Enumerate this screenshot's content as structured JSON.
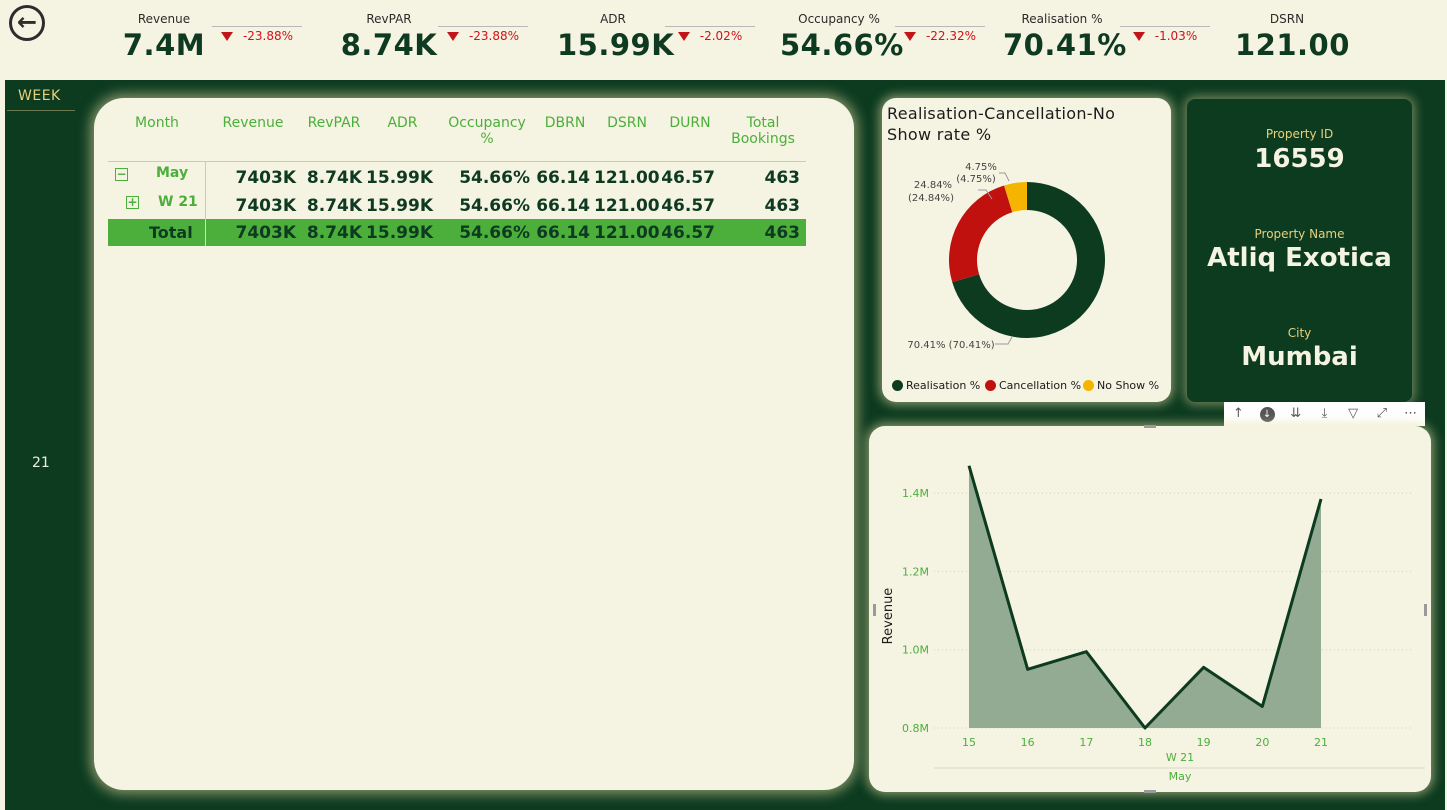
{
  "kpis": [
    {
      "label": "Revenue",
      "value": "7.4M",
      "delta": "-23.88%"
    },
    {
      "label": "RevPAR",
      "value": "8.74K",
      "delta": "-23.88%"
    },
    {
      "label": "ADR",
      "value": "15.99K",
      "delta": "-2.02%"
    },
    {
      "label": "Occupancy %",
      "value": "54.66%",
      "delta": "-22.32%"
    },
    {
      "label": "Realisation %",
      "value": "70.41%",
      "delta": "-1.03%"
    },
    {
      "label": "DSRN",
      "value": "121.00"
    }
  ],
  "week_slicer": {
    "title": "WEEK",
    "value": "21"
  },
  "matrix": {
    "headers": [
      "Month",
      "Revenue",
      "RevPAR",
      "ADR",
      "Occupancy %",
      "DBRN",
      "DSRN",
      "DURN",
      "Total Bookings"
    ],
    "rows": [
      {
        "expander": "−",
        "label": "May",
        "cells": [
          "7403K",
          "8.74K",
          "15.99K",
          "54.66%",
          "66.14",
          "121.00",
          "46.57",
          "463"
        ]
      },
      {
        "expander": "+",
        "label": "W 21",
        "cells": [
          "7403K",
          "8.74K",
          "15.99K",
          "54.66%",
          "66.14",
          "121.00",
          "46.57",
          "463"
        ]
      }
    ],
    "total": {
      "label": "Total",
      "cells": [
        "7403K",
        "8.74K",
        "15.99K",
        "54.66%",
        "66.14",
        "121.00",
        "46.57",
        "463"
      ]
    }
  },
  "donut": {
    "title": "Realisation-Cancellation-No Show rate %",
    "slices": [
      {
        "name": "Realisation %",
        "value": 70.41,
        "label": "70.41% (70.41%)",
        "color": "#0d3b20"
      },
      {
        "name": "Cancellation %",
        "value": 24.84,
        "label_line1": "24.84%",
        "label_line2": "(24.84%)",
        "color": "#c0110f"
      },
      {
        "name": "No Show %",
        "value": 4.75,
        "label_line1": "4.75%",
        "label_line2": "(4.75%)",
        "color": "#f4b400"
      }
    ]
  },
  "property": {
    "id_label": "Property ID",
    "id": "16559",
    "name_label": "Property Name",
    "name": "Atliq Exotica",
    "city_label": "City",
    "city": "Mumbai"
  },
  "toolbar_icons": [
    "drill-up-icon",
    "drill-down-toggle-icon",
    "next-level-icon",
    "expand-hierarchy-icon",
    "filter-icon",
    "focus-mode-icon",
    "more-options-icon"
  ],
  "chart_data": {
    "type": "area",
    "x": [
      15,
      16,
      17,
      18,
      19,
      20,
      21
    ],
    "values": [
      1.47,
      0.95,
      0.995,
      0.8,
      0.955,
      0.855,
      1.385
    ],
    "ylabel": "Revenue",
    "x_group_labels": [
      "W 21",
      "May"
    ],
    "yticks": [
      "0.8M",
      "1.0M",
      "1.2M",
      "1.4M"
    ],
    "ytick_values": [
      0.8,
      1.0,
      1.2,
      1.4
    ],
    "ylim": [
      0.8,
      1.5
    ],
    "line_color": "#0d3b20",
    "fill_color": "#93ab92",
    "grid": true
  }
}
